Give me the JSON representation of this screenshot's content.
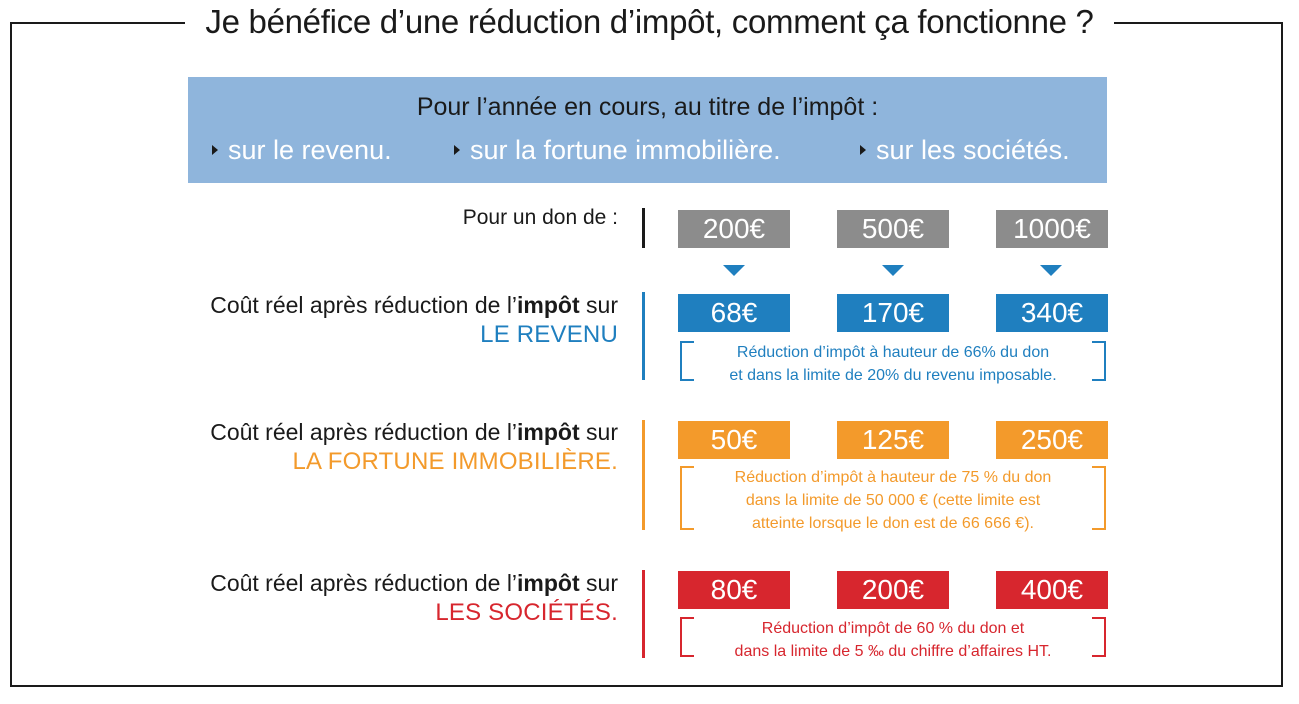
{
  "title": "Je bénéfice d’une réduction d’impôt, comment ça fonctionne ?",
  "banner": {
    "heading": "Pour l’année en cours, au titre de l’impôt :",
    "items": [
      "sur le revenu.",
      "sur la fortune immobilière.",
      "sur les sociétés."
    ]
  },
  "don": {
    "label": "Pour un don de :",
    "amounts": [
      "200€",
      "500€",
      "1000€"
    ]
  },
  "rows": [
    {
      "label_prefix": "Coût réel après réduction de l’",
      "label_bold": "impôt",
      "label_suffix": " sur",
      "kind": "LE REVENU",
      "values": [
        "68€",
        "170€",
        "340€"
      ],
      "note": [
        "Réduction d’impôt à hauteur de 66% du don",
        "et dans la limite de 20% du revenu imposable."
      ]
    },
    {
      "label_prefix": "Coût réel après réduction de l’",
      "label_bold": "impôt",
      "label_suffix": " sur",
      "kind": "LA FORTUNE IMMOBILIÈRE.",
      "values": [
        "50€",
        "125€",
        "250€"
      ],
      "note": [
        "Réduction d’impôt à hauteur de 75 % du don",
        "dans la limite de 50 000 € (cette limite est",
        "atteinte lorsque le don est de 66 666 €)."
      ]
    },
    {
      "label_prefix": "Coût réel après réduction de l’",
      "label_bold": "impôt",
      "label_suffix": " sur",
      "kind": "LES SOCIÉTÉS.",
      "values": [
        "80€",
        "200€",
        "400€"
      ],
      "note": [
        "Réduction d’impôt de 60 % du don et",
        "dans la limite de 5 ‰ du chiffre d’affaires HT."
      ]
    }
  ],
  "colors": {
    "gray": "#8c8c8c",
    "blue": "#1f7fbf",
    "orange": "#f39a2b",
    "red": "#d7262e",
    "banner": "#8fb5dc"
  }
}
